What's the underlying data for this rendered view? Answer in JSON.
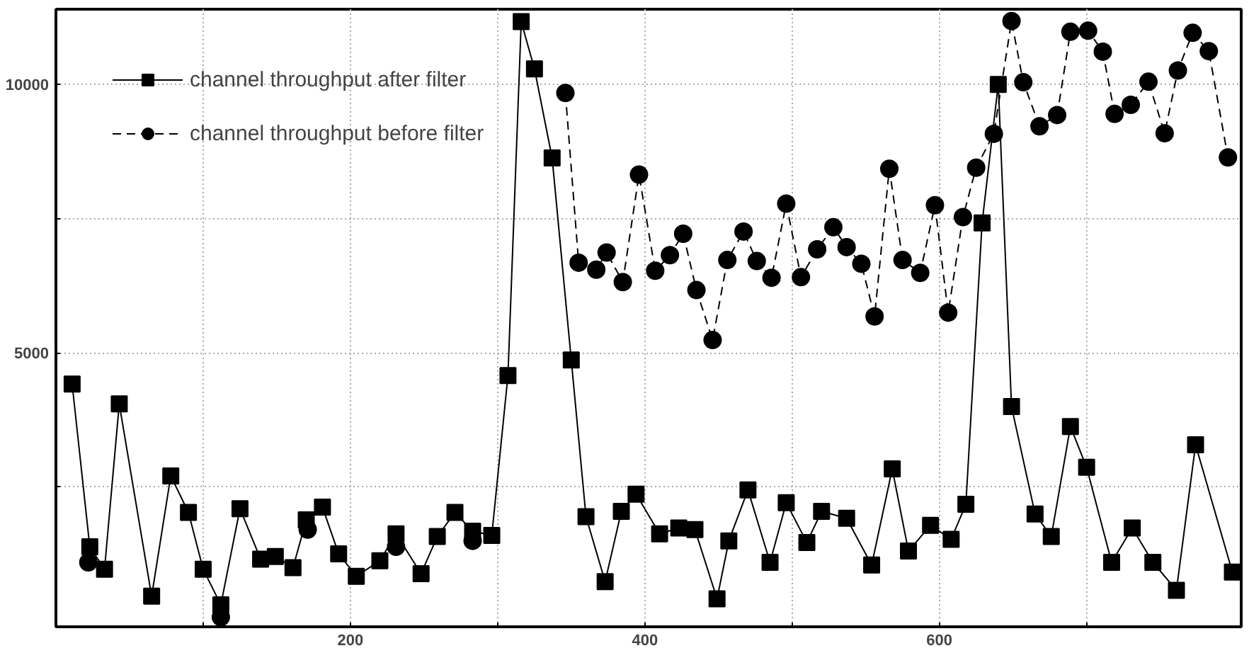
{
  "chart_data": {
    "type": "line",
    "xlim": [
      0,
      805
    ],
    "ylim": [
      -100,
      11400
    ],
    "xticks": [
      {
        "value": 100,
        "label": null
      },
      200,
      {
        "value": 300,
        "label": null
      },
      400,
      {
        "value": 500,
        "label": null
      },
      600,
      {
        "value": 700,
        "label": null
      }
    ],
    "yticks": [
      {
        "value": 2500,
        "label": null
      },
      5000,
      {
        "value": 7500,
        "label": null
      },
      10000
    ],
    "grid": true,
    "legend": "top left",
    "series": [
      {
        "name": "channel throughput after filter",
        "color": "#000000",
        "marker": "square",
        "line_style": "solid",
        "x": [
          11,
          23,
          33,
          43,
          65,
          78,
          90,
          100,
          112,
          125,
          139,
          149,
          161,
          170,
          181,
          192,
          204,
          220,
          231,
          248,
          259,
          271,
          283,
          296,
          307,
          316,
          325,
          337,
          350,
          360,
          373,
          384,
          394,
          410,
          423,
          434,
          449,
          457,
          470,
          485,
          496,
          510,
          520,
          537,
          554,
          568,
          579,
          594,
          608,
          618,
          629,
          640,
          649,
          665,
          676,
          689,
          700,
          717,
          731,
          745,
          761,
          774,
          799
        ],
        "values": [
          4420,
          1390,
          970,
          4050,
          470,
          2710,
          2030,
          970,
          310,
          2100,
          1160,
          1210,
          1000,
          1890,
          2130,
          1260,
          840,
          1130,
          1630,
          890,
          1580,
          2030,
          1680,
          1600,
          4580,
          11170,
          10290,
          8630,
          4870,
          1950,
          740,
          2050,
          2370,
          1630,
          1740,
          1710,
          420,
          1500,
          2450,
          1100,
          2210,
          1470,
          2050,
          1920,
          1050,
          2840,
          1310,
          1790,
          1530,
          2180,
          7420,
          10000,
          4000,
          2000,
          1580,
          3630,
          2870,
          1100,
          1740,
          1100,
          580,
          3290,
          920
        ]
      },
      {
        "name": "channel throughput before filter",
        "color": "#000000",
        "marker": "circle",
        "line_style": "dashed",
        "x": [
          22,
          60,
          112,
          140,
          171,
          200,
          231,
          260,
          283,
          315,
          346,
          355,
          367,
          374,
          385,
          396,
          407,
          417,
          426,
          435,
          446,
          456,
          467,
          476,
          486,
          496,
          506,
          517,
          528,
          537,
          547,
          556,
          566,
          575,
          587,
          597,
          606,
          616,
          625,
          637,
          649,
          657,
          668,
          680,
          689,
          701,
          711,
          719,
          730,
          742,
          753,
          762,
          772,
          783,
          796
        ],
        "values": [
          1100,
          null,
          80,
          null,
          1710,
          null,
          1390,
          null,
          1500,
          null,
          9840,
          6680,
          6550,
          6870,
          6320,
          8320,
          6530,
          6820,
          7220,
          6170,
          5240,
          6730,
          7260,
          6710,
          6400,
          7780,
          6410,
          6930,
          7340,
          6970,
          6660,
          5680,
          8430,
          6730,
          6490,
          7750,
          5750,
          7530,
          8450,
          9080,
          11180,
          10040,
          9220,
          9430,
          10980,
          11000,
          10610,
          9450,
          9620,
          10050,
          9090,
          10260,
          10960,
          10620,
          8640
        ]
      }
    ]
  }
}
